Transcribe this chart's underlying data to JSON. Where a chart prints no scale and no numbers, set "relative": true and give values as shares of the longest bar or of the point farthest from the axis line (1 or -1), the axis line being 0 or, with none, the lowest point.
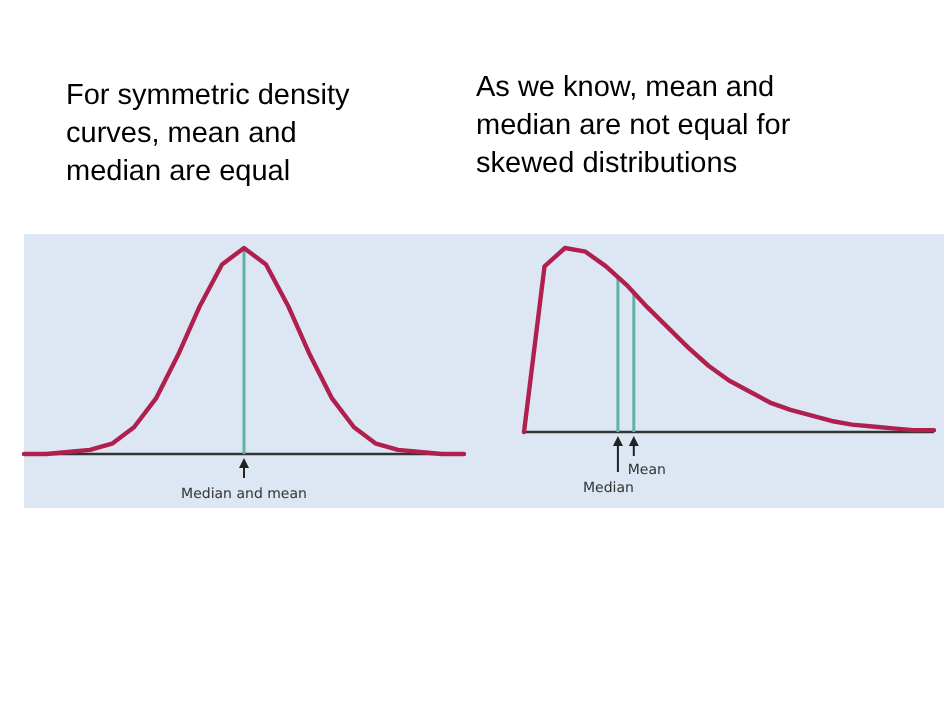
{
  "chart_data": [
    {
      "type": "line",
      "title": "For symmetric density\ncurves, mean and\nmedian are equal",
      "relative": true,
      "categories": [
        null,
        null,
        null,
        null,
        null,
        null,
        null,
        null,
        null,
        null,
        null,
        null,
        null,
        null,
        null,
        null,
        null,
        null,
        null,
        null,
        null
      ],
      "series": [
        {
          "color": "#b0204f",
          "values": [
            0,
            0,
            0.01,
            0.02,
            0.05,
            0.13,
            0.27,
            0.48,
            0.72,
            0.92,
            1,
            0.92,
            0.72,
            0.48,
            0.27,
            0.13,
            0.05,
            0.02,
            0.01,
            0,
            0
          ]
        }
      ],
      "annotations": [
        "Median and mean"
      ]
    },
    {
      "type": "line",
      "title": "As we know, mean and\nmedian are not equal for\nskewed distributions",
      "relative": true,
      "categories": [
        null,
        null,
        null,
        null,
        null,
        null,
        null,
        null,
        null,
        null,
        null,
        null,
        null,
        null,
        null,
        null,
        null,
        null,
        null,
        null,
        null
      ],
      "series": [
        {
          "color": "#b0204f",
          "values": [
            0,
            0.9,
            1,
            0.98,
            0.9,
            0.8,
            0.68,
            0.57,
            0.46,
            0.36,
            0.28,
            0.22,
            0.16,
            0.12,
            0.09,
            0.06,
            0.04,
            0.03,
            0.02,
            0.01,
            0.01
          ]
        }
      ],
      "annotations": [
        "Median",
        "Mean"
      ]
    }
  ]
}
